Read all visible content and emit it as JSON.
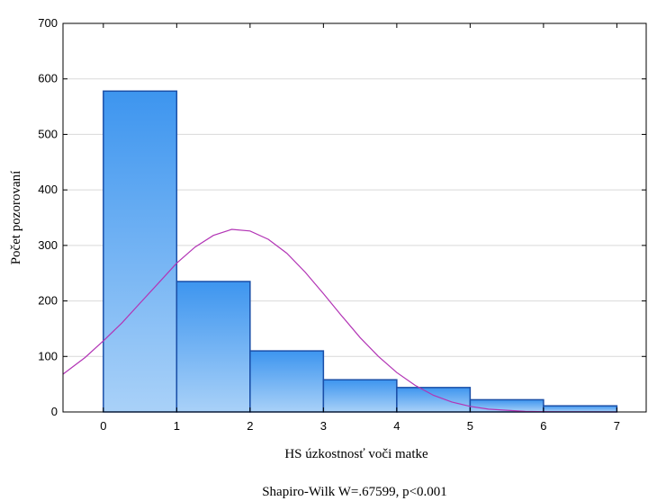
{
  "chart_data": {
    "type": "bar",
    "title": "",
    "xlabel": "HS úzkostnosť voči matke",
    "ylabel": "Počet pozorovaní",
    "footnote": "Shapiro-Wilk W=.67599, p<0.001",
    "bins": [
      {
        "from": 0,
        "to": 1,
        "count": 578
      },
      {
        "from": 1,
        "to": 2,
        "count": 235
      },
      {
        "from": 2,
        "to": 3,
        "count": 110
      },
      {
        "from": 3,
        "to": 4,
        "count": 58
      },
      {
        "from": 4,
        "to": 5,
        "count": 44
      },
      {
        "from": 5,
        "to": 6,
        "count": 22
      },
      {
        "from": 6,
        "to": 7,
        "count": 11
      }
    ],
    "xlim": [
      -0.55,
      7.4
    ],
    "ylim": [
      0,
      700
    ],
    "x_ticks": [
      "0",
      "1",
      "2",
      "3",
      "4",
      "5",
      "6",
      "7"
    ],
    "y_ticks": [
      "0",
      "100",
      "200",
      "300",
      "400",
      "500",
      "600",
      "700"
    ],
    "normal_curve": {
      "x": [
        -0.55,
        -0.25,
        0,
        0.25,
        0.5,
        0.75,
        1.0,
        1.25,
        1.5,
        1.75,
        2.0,
        2.25,
        2.5,
        2.75,
        3.0,
        3.25,
        3.5,
        3.75,
        4.0,
        4.25,
        4.5,
        4.75,
        5.0,
        5.25,
        5.5,
        5.75,
        6.0,
        6.25,
        6.5,
        7.0
      ],
      "y": [
        68,
        98,
        128,
        160,
        196,
        232,
        268,
        297,
        318,
        329,
        326,
        311,
        286,
        252,
        213,
        173,
        134,
        100,
        71,
        48,
        30,
        18,
        10,
        5,
        3,
        1,
        0.5,
        0.2,
        0.1,
        0
      ]
    },
    "grid": true,
    "colors": {
      "bar_top": "#3d95ef",
      "bar_bottom": "#a9d1f8",
      "bar_stroke": "#1a4fa8",
      "curve": "#b234b5",
      "grid": "#d9d9d9"
    }
  }
}
